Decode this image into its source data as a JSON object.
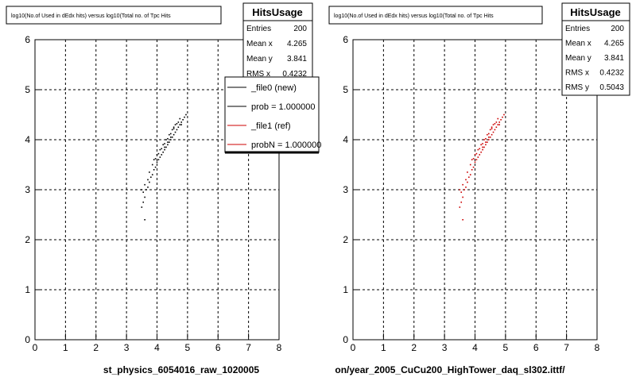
{
  "chart_data": [
    {
      "type": "scatter",
      "title": "log10(No.of Used in dEdx hits) versus log10(Total no. of Tpc Hits",
      "xlabel": "st_physics_6054016_raw_1020005",
      "ylabel": "",
      "xlim": [
        0,
        8
      ],
      "ylim": [
        0,
        6
      ],
      "xticks": [
        "0",
        "1",
        "2",
        "3",
        "4",
        "5",
        "6",
        "7",
        "8"
      ],
      "yticks": [
        "0",
        "1",
        "2",
        "3",
        "4",
        "5",
        "6"
      ],
      "grid": true,
      "stats": {
        "name": "HitsUsage",
        "rows": [
          {
            "label": "Entries",
            "value": "200"
          },
          {
            "label": "Mean x",
            "value": "4.265"
          },
          {
            "label": "Mean y",
            "value": "3.841"
          },
          {
            "label": "RMS x",
            "value": "0.4232"
          }
        ]
      },
      "legend": {
        "position": "top-right",
        "entries": [
          {
            "label": "_file0 (new)",
            "color": "#000000"
          },
          {
            "label": "prob = 1.000000",
            "color": "#000000"
          },
          {
            "label": "_file1 (ref)",
            "color": "#cc0000"
          },
          {
            "label": "probN = 1.000000",
            "color": "#cc0000"
          }
        ]
      },
      "series": [
        {
          "color": "#000000",
          "points": [
            [
              3.5,
              2.65
            ],
            [
              3.55,
              2.75
            ],
            [
              3.6,
              2.85
            ],
            [
              3.55,
              2.95
            ],
            [
              3.65,
              3.0
            ],
            [
              3.7,
              3.05
            ],
            [
              3.6,
              3.1
            ],
            [
              3.75,
              3.15
            ],
            [
              3.7,
              3.2
            ],
            [
              3.8,
              3.25
            ],
            [
              3.85,
              3.3
            ],
            [
              3.75,
              3.35
            ],
            [
              3.9,
              3.4
            ],
            [
              3.95,
              3.45
            ],
            [
              3.85,
              3.5
            ],
            [
              4.0,
              3.55
            ],
            [
              4.05,
              3.6
            ],
            [
              3.95,
              3.62
            ],
            [
              4.1,
              3.65
            ],
            [
              4.15,
              3.7
            ],
            [
              4.05,
              3.72
            ],
            [
              4.2,
              3.75
            ],
            [
              4.25,
              3.8
            ],
            [
              4.15,
              3.82
            ],
            [
              4.3,
              3.85
            ],
            [
              4.35,
              3.9
            ],
            [
              4.25,
              3.92
            ],
            [
              4.4,
              3.95
            ],
            [
              4.45,
              4.0
            ],
            [
              4.35,
              4.02
            ],
            [
              4.5,
              4.05
            ],
            [
              4.55,
              4.1
            ],
            [
              4.45,
              4.12
            ],
            [
              4.6,
              4.15
            ],
            [
              4.65,
              4.2
            ],
            [
              4.55,
              4.22
            ],
            [
              4.7,
              4.25
            ],
            [
              4.75,
              4.3
            ],
            [
              4.65,
              4.32
            ],
            [
              4.8,
              4.35
            ],
            [
              4.85,
              4.4
            ],
            [
              4.75,
              4.42
            ],
            [
              4.9,
              4.45
            ],
            [
              4.95,
              4.5
            ],
            [
              4.4,
              4.1
            ],
            [
              4.5,
              4.2
            ],
            [
              4.6,
              4.3
            ],
            [
              4.3,
              4.0
            ],
            [
              4.2,
              3.9
            ],
            [
              4.1,
              3.8
            ],
            [
              4.0,
              3.7
            ],
            [
              3.9,
              3.6
            ],
            [
              3.6,
              2.4
            ],
            [
              4.7,
              4.35
            ],
            [
              4.8,
              4.3
            ],
            [
              4.55,
              4.25
            ],
            [
              4.45,
              4.05
            ],
            [
              4.35,
              3.95
            ],
            [
              4.25,
              3.85
            ],
            [
              3.5,
              3.0
            ]
          ]
        }
      ]
    },
    {
      "type": "scatter",
      "title": "log10(No.of Used in dEdx hits) versus log10(Total no. of Tpc Hits",
      "xlabel": "on/year_2005_CuCu200_HighTower_daq_sl302.ittf/",
      "ylabel": "",
      "xlim": [
        0,
        8
      ],
      "ylim": [
        0,
        6
      ],
      "xticks": [
        "0",
        "1",
        "2",
        "3",
        "4",
        "5",
        "6",
        "7",
        "8"
      ],
      "yticks": [
        "0",
        "1",
        "2",
        "3",
        "4",
        "5",
        "6"
      ],
      "grid": true,
      "stats": {
        "name": "HitsUsage",
        "rows": [
          {
            "label": "Entries",
            "value": "200"
          },
          {
            "label": "Mean x",
            "value": "4.265"
          },
          {
            "label": "Mean y",
            "value": "3.841"
          },
          {
            "label": "RMS x",
            "value": "0.4232"
          },
          {
            "label": "RMS y",
            "value": "0.5043"
          }
        ]
      },
      "series": [
        {
          "color": "#cc0000",
          "points": [
            [
              3.5,
              2.65
            ],
            [
              3.55,
              2.75
            ],
            [
              3.6,
              2.85
            ],
            [
              3.55,
              2.95
            ],
            [
              3.65,
              3.0
            ],
            [
              3.7,
              3.05
            ],
            [
              3.6,
              3.1
            ],
            [
              3.75,
              3.15
            ],
            [
              3.7,
              3.2
            ],
            [
              3.8,
              3.25
            ],
            [
              3.85,
              3.3
            ],
            [
              3.75,
              3.35
            ],
            [
              3.9,
              3.4
            ],
            [
              3.95,
              3.45
            ],
            [
              3.85,
              3.5
            ],
            [
              4.0,
              3.55
            ],
            [
              4.05,
              3.6
            ],
            [
              3.95,
              3.62
            ],
            [
              4.1,
              3.65
            ],
            [
              4.15,
              3.7
            ],
            [
              4.05,
              3.72
            ],
            [
              4.2,
              3.75
            ],
            [
              4.25,
              3.8
            ],
            [
              4.15,
              3.82
            ],
            [
              4.3,
              3.85
            ],
            [
              4.35,
              3.9
            ],
            [
              4.25,
              3.92
            ],
            [
              4.4,
              3.95
            ],
            [
              4.45,
              4.0
            ],
            [
              4.35,
              4.02
            ],
            [
              4.5,
              4.05
            ],
            [
              4.55,
              4.1
            ],
            [
              4.45,
              4.12
            ],
            [
              4.6,
              4.15
            ],
            [
              4.65,
              4.2
            ],
            [
              4.55,
              4.22
            ],
            [
              4.7,
              4.25
            ],
            [
              4.75,
              4.3
            ],
            [
              4.65,
              4.32
            ],
            [
              4.8,
              4.35
            ],
            [
              4.85,
              4.4
            ],
            [
              4.75,
              4.42
            ],
            [
              4.9,
              4.45
            ],
            [
              4.95,
              4.5
            ],
            [
              4.4,
              4.1
            ],
            [
              4.5,
              4.2
            ],
            [
              4.6,
              4.3
            ],
            [
              4.3,
              4.0
            ],
            [
              4.2,
              3.9
            ],
            [
              4.1,
              3.8
            ],
            [
              4.0,
              3.7
            ],
            [
              3.9,
              3.6
            ],
            [
              3.6,
              2.4
            ],
            [
              4.7,
              4.35
            ],
            [
              4.8,
              4.3
            ],
            [
              4.55,
              4.25
            ],
            [
              4.45,
              4.05
            ],
            [
              4.35,
              3.95
            ],
            [
              4.25,
              3.85
            ],
            [
              3.5,
              3.0
            ]
          ]
        }
      ]
    }
  ]
}
